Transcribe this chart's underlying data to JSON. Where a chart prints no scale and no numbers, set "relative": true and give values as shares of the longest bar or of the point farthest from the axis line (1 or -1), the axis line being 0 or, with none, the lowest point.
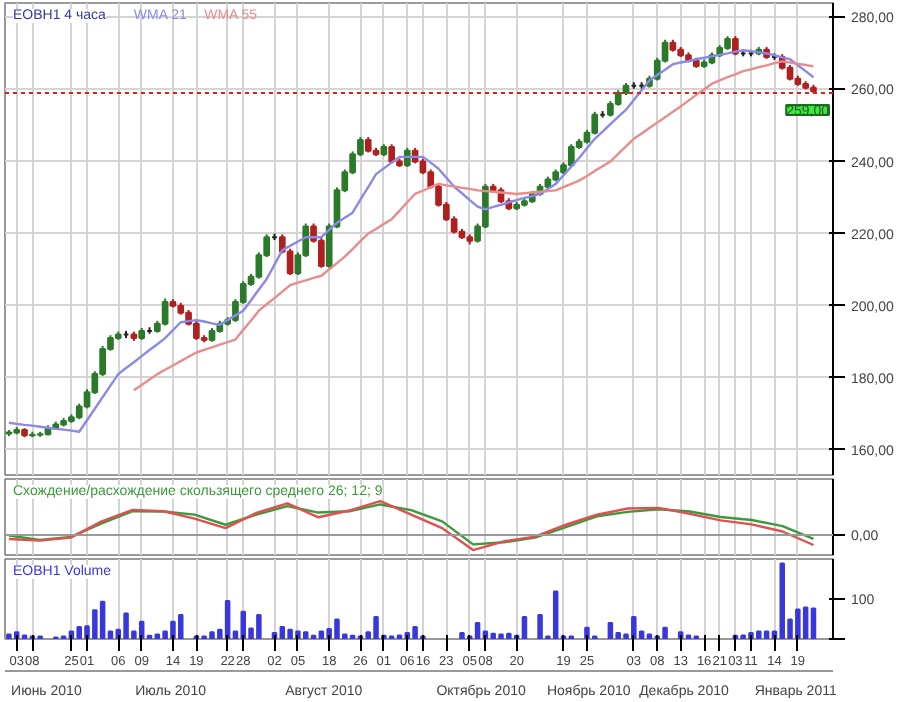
{
  "chart_data": [
    {
      "type": "candlestick",
      "title": "EOBH1 4 часа",
      "categories": [
        null,
        "03",
        null,
        "08",
        null,
        null,
        null,
        null,
        "25",
        null,
        "01",
        null,
        null,
        null,
        "06",
        null,
        null,
        "09",
        null,
        null,
        null,
        "14",
        null,
        null,
        "19",
        null,
        null,
        null,
        "22",
        null,
        "28",
        null,
        null,
        null,
        "02",
        null,
        null,
        "05",
        null,
        null,
        null,
        "18",
        null,
        null,
        null,
        "26",
        null,
        null,
        "01",
        null,
        null,
        "06",
        null,
        "16",
        null,
        null,
        "23",
        null,
        null,
        "05",
        null,
        "08",
        null,
        null,
        null,
        "20",
        null,
        null,
        null,
        null,
        null,
        "19",
        null,
        null,
        "25",
        null,
        null,
        null,
        null,
        null,
        "03",
        null,
        null,
        "08",
        null,
        null,
        "13",
        null,
        null,
        "16",
        null,
        "21",
        null,
        "03",
        null,
        "11",
        null,
        null,
        "14",
        null,
        null,
        "19",
        null,
        null
      ],
      "ohlc": [
        [
          164.5,
          165.5,
          163.8,
          164.8
        ],
        [
          164.8,
          166.3,
          164.3,
          165.5
        ],
        [
          165.5,
          166,
          163.5,
          164
        ],
        [
          164,
          165,
          163.5,
          164.2
        ],
        [
          164.2,
          165,
          163.6,
          164.3
        ],
        [
          164.3,
          166.8,
          164,
          166
        ],
        [
          166,
          167.8,
          165.5,
          167
        ],
        [
          167,
          168.8,
          166.5,
          168
        ],
        [
          168,
          169.8,
          167.5,
          169
        ],
        [
          169,
          172.8,
          168.5,
          172
        ],
        [
          172,
          176.8,
          171.5,
          176
        ],
        [
          176,
          181.8,
          175.5,
          181
        ],
        [
          181,
          188.8,
          180.5,
          188
        ],
        [
          188,
          191.8,
          187.5,
          191
        ],
        [
          191,
          192.8,
          190.5,
          192
        ],
        [
          192,
          193,
          191,
          192
        ],
        [
          192,
          192.8,
          190.2,
          191
        ],
        [
          191,
          193.8,
          190.5,
          193
        ],
        [
          193,
          194,
          192.2,
          193
        ],
        [
          193,
          195.8,
          192.5,
          195
        ],
        [
          195,
          202,
          194.5,
          201
        ],
        [
          201,
          201.8,
          199.5,
          200
        ],
        [
          200,
          200.8,
          197.5,
          198
        ],
        [
          198,
          198.8,
          194.5,
          195
        ],
        [
          195,
          195.8,
          190.5,
          191
        ],
        [
          191,
          191.8,
          189.8,
          190.5
        ],
        [
          190.5,
          193.8,
          190,
          193
        ],
        [
          193,
          195.8,
          192.5,
          195
        ],
        [
          195,
          196.8,
          194.5,
          196
        ],
        [
          196,
          201.8,
          195.5,
          201
        ],
        [
          201,
          206.8,
          200.5,
          206
        ],
        [
          206,
          208.8,
          205.5,
          208
        ],
        [
          208,
          214.8,
          207.5,
          214
        ],
        [
          214,
          219.8,
          213.5,
          219
        ],
        [
          219,
          220,
          218.2,
          219
        ],
        [
          219,
          219.8,
          214.5,
          215
        ],
        [
          215,
          215.8,
          208.5,
          209
        ],
        [
          209,
          214.8,
          208.5,
          214
        ],
        [
          214,
          222.8,
          213.5,
          222
        ],
        [
          222,
          222.8,
          217.5,
          218
        ],
        [
          218,
          218.8,
          210.5,
          211
        ],
        [
          211,
          222.8,
          210.5,
          222
        ],
        [
          222,
          232.8,
          221.5,
          232
        ],
        [
          232,
          237.8,
          231.5,
          237
        ],
        [
          237,
          242.8,
          236.5,
          242
        ],
        [
          242,
          246.8,
          241.5,
          246
        ],
        [
          246,
          246.8,
          242.5,
          243
        ],
        [
          243,
          243.8,
          241.5,
          242
        ],
        [
          242,
          244.8,
          241.5,
          244
        ],
        [
          244,
          244.8,
          239.5,
          240
        ],
        [
          240,
          240.8,
          238.5,
          239
        ],
        [
          239,
          243.8,
          238.5,
          243
        ],
        [
          243,
          243.8,
          239.5,
          240
        ],
        [
          240,
          240.8,
          236.5,
          237
        ],
        [
          237,
          237.8,
          232.5,
          233
        ],
        [
          233,
          233.8,
          227.5,
          228
        ],
        [
          228,
          228.8,
          223.5,
          224
        ],
        [
          224,
          224.8,
          220,
          220.5
        ],
        [
          220.5,
          221.3,
          218.5,
          219
        ],
        [
          219,
          219.8,
          217,
          218
        ],
        [
          218,
          222.8,
          217.5,
          222
        ],
        [
          222,
          233.8,
          221.5,
          233
        ],
        [
          233,
          233.8,
          231.5,
          232
        ],
        [
          232,
          232.8,
          228.5,
          229
        ],
        [
          229,
          229.8,
          226.5,
          227
        ],
        [
          227,
          228.8,
          226.5,
          228
        ],
        [
          228,
          229.8,
          227.5,
          229
        ],
        [
          229,
          231.8,
          228.5,
          231
        ],
        [
          231,
          233.8,
          230.5,
          233
        ],
        [
          233,
          235.8,
          232.5,
          235
        ],
        [
          235,
          237.8,
          234.5,
          237
        ],
        [
          237,
          239.8,
          236.5,
          239
        ],
        [
          239,
          244.8,
          238.5,
          244
        ],
        [
          244,
          246.3,
          243.5,
          245.5
        ],
        [
          245.5,
          248.8,
          245,
          248
        ],
        [
          248,
          253.8,
          247.5,
          253
        ],
        [
          253,
          254,
          252.2,
          253
        ],
        [
          253,
          256.8,
          252.5,
          256
        ],
        [
          256,
          259.8,
          255.5,
          259
        ],
        [
          259,
          261.8,
          258.5,
          261
        ],
        [
          261,
          262,
          260.2,
          261
        ],
        [
          261,
          262,
          260.2,
          261
        ],
        [
          261,
          263.8,
          260.5,
          263
        ],
        [
          263,
          268.8,
          262.5,
          268
        ],
        [
          268,
          273.8,
          267.5,
          273
        ],
        [
          273,
          273.8,
          270.5,
          271
        ],
        [
          271,
          271.8,
          269,
          269.5
        ],
        [
          269.5,
          270.3,
          267.5,
          268
        ],
        [
          268,
          268.8,
          266,
          266.5
        ],
        [
          266.5,
          268.3,
          266,
          267.5
        ],
        [
          267.5,
          270.3,
          267,
          269.5
        ],
        [
          269.5,
          272.3,
          269,
          271.5
        ],
        [
          271.5,
          274.8,
          271,
          274
        ],
        [
          274,
          274.8,
          269.5,
          270
        ],
        [
          270,
          271,
          269.2,
          270
        ],
        [
          270,
          271,
          269.2,
          270
        ],
        [
          270,
          271.8,
          269.5,
          271
        ],
        [
          271,
          271.8,
          268.5,
          269
        ],
        [
          269,
          270,
          268.2,
          269
        ],
        [
          269,
          269.8,
          265.5,
          266
        ],
        [
          266,
          266.8,
          262.5,
          263
        ],
        [
          263,
          263.8,
          261,
          261.5
        ],
        [
          261.5,
          262.3,
          260,
          260.5
        ],
        [
          260.5,
          261.3,
          259,
          259.5
        ]
      ],
      "colors": [
        "#2a7a2a",
        "#2a7a2a",
        "#b02020",
        "#2a7a2a",
        "#2a7a2a",
        "#2a7a2a",
        "#2a7a2a",
        "#2a7a2a",
        "#2a7a2a",
        "#2a7a2a",
        "#2a7a2a",
        "#2a7a2a",
        "#2a7a2a",
        "#2a7a2a",
        "#2a7a2a",
        "#222222",
        "#b02020",
        "#2a7a2a",
        "#222222",
        "#2a7a2a",
        "#2a7a2a",
        "#b02020",
        "#b02020",
        "#b02020",
        "#b02020",
        "#b02020",
        "#2a7a2a",
        "#2a7a2a",
        "#2a7a2a",
        "#2a7a2a",
        "#2a7a2a",
        "#2a7a2a",
        "#2a7a2a",
        "#2a7a2a",
        "#222222",
        "#b02020",
        "#b02020",
        "#2a7a2a",
        "#2a7a2a",
        "#b02020",
        "#b02020",
        "#2a7a2a",
        "#2a7a2a",
        "#2a7a2a",
        "#2a7a2a",
        "#2a7a2a",
        "#b02020",
        "#b02020",
        "#2a7a2a",
        "#b02020",
        "#b02020",
        "#2a7a2a",
        "#b02020",
        "#b02020",
        "#b02020",
        "#b02020",
        "#b02020",
        "#b02020",
        "#b02020",
        "#b02020",
        "#2a7a2a",
        "#2a7a2a",
        "#b02020",
        "#b02020",
        "#b02020",
        "#2a7a2a",
        "#2a7a2a",
        "#2a7a2a",
        "#2a7a2a",
        "#2a7a2a",
        "#2a7a2a",
        "#2a7a2a",
        "#2a7a2a",
        "#2a7a2a",
        "#2a7a2a",
        "#2a7a2a",
        "#222222",
        "#2a7a2a",
        "#2a7a2a",
        "#2a7a2a",
        "#222222",
        "#222222",
        "#2a7a2a",
        "#2a7a2a",
        "#2a7a2a",
        "#b02020",
        "#b02020",
        "#b02020",
        "#b02020",
        "#2a7a2a",
        "#2a7a2a",
        "#2a7a2a",
        "#2a7a2a",
        "#b02020",
        "#222222",
        "#222222",
        "#2a7a2a",
        "#b02020",
        "#222222",
        "#b02020",
        "#b02020",
        "#b02020",
        "#b02020",
        "#b02020"
      ],
      "series": [
        {
          "type": "line",
          "name": "WMA 21",
          "color": "#8a8ae6",
          "values": [
            167.5,
            167.2,
            166.9,
            166.7,
            166.4,
            166.1,
            165.8,
            165.6,
            165.3,
            165,
            168.2,
            171.4,
            174.6,
            177.8,
            181,
            182.7,
            184.3,
            186,
            187.7,
            189.3,
            191,
            193.2,
            195.4,
            195.7,
            196,
            195.6,
            195.1,
            194.7,
            196,
            197.3,
            198.6,
            201.5,
            204.5,
            207.4,
            211.4,
            215.4,
            216.6,
            217.8,
            219,
            219,
            219,
            221,
            223,
            224.4,
            225.8,
            229.4,
            232.9,
            236.5,
            238.1,
            239.7,
            241.3,
            241.3,
            241.3,
            241.3,
            239.7,
            238,
            235.5,
            233,
            231.2,
            229.3,
            227.5,
            226.7,
            227.4,
            228,
            228.7,
            229.3,
            229.9,
            230.4,
            231,
            232.4,
            233.8,
            236.2,
            238.6,
            241,
            243.7,
            246.3,
            248.3,
            250.4,
            252.4,
            254.4,
            257.1,
            259.8,
            262.5,
            264,
            265.5,
            267,
            267.5,
            267.9,
            268.4,
            268.8,
            269.2,
            269.6,
            270,
            270.5,
            270.9,
            270.6,
            270.3,
            270,
            269.5,
            268.9,
            268.4,
            266.7,
            265.1,
            263.4
          ]
        },
        {
          "type": "line",
          "name": "WMA 55",
          "color": "#e88c8c",
          "values": [
            null,
            null,
            null,
            null,
            null,
            null,
            null,
            null,
            null,
            null,
            null,
            null,
            null,
            null,
            null,
            null,
            176.5,
            178,
            179.5,
            181,
            182.2,
            183.4,
            184.6,
            185.8,
            187,
            187.7,
            188.4,
            189.2,
            189.9,
            190.6,
            193.3,
            195.9,
            198.6,
            200.4,
            202.1,
            203.9,
            205.7,
            206.4,
            207,
            207.7,
            208.3,
            210.1,
            211.8,
            213.6,
            215.7,
            217.9,
            220,
            221.3,
            222.7,
            224,
            226.3,
            228.7,
            231,
            231.9,
            232.9,
            233.8,
            233.4,
            233.1,
            232.7,
            232.4,
            232,
            231.8,
            231.6,
            231.4,
            231.2,
            231,
            231.2,
            231.4,
            231.6,
            231.8,
            232,
            232.9,
            233.8,
            234.7,
            236,
            237.4,
            238.7,
            240,
            242.1,
            244.2,
            246.3,
            247.8,
            249.3,
            250.8,
            252.3,
            253.8,
            255.3,
            256.9,
            258.5,
            260,
            261.6,
            262.5,
            263.4,
            264.2,
            265.1,
            265.6,
            266.2,
            266.7,
            267.3,
            267.8,
            267.5,
            267.1,
            266.8,
            266.4
          ]
        }
      ],
      "ylim": [
        153,
        284
      ],
      "yticks": [
        {
          "value": 160,
          "label": "160,00"
        },
        {
          "value": 180,
          "label": "180,00"
        },
        {
          "value": 200,
          "label": "200,00"
        },
        {
          "value": 220,
          "label": "220,00"
        },
        {
          "value": 240,
          "label": "240,00"
        },
        {
          "value": 260,
          "label": "260,00"
        },
        {
          "value": 280,
          "label": "280,00"
        }
      ],
      "ref_lines": [
        {
          "axis": "y",
          "value": 259,
          "label": "259,00",
          "color": "#e02020",
          "line_style": "dotted"
        }
      ],
      "grid": true,
      "tick_labels": "y"
    },
    {
      "type": "line",
      "title": "Схождение/расхождение скользящего среднего 26; 12; 9",
      "relative": true,
      "categories": [
        null,
        null,
        null,
        null,
        null,
        null,
        null,
        null,
        null,
        null,
        null,
        null,
        null,
        null,
        null,
        null,
        null,
        null,
        null,
        null,
        null,
        null,
        null,
        null,
        null,
        null,
        null
      ],
      "series": [
        {
          "color": "#3c9a3c",
          "values": [
            -0.02,
            -0.15,
            -0.06,
            0.34,
            0.7,
            0.69,
            0.6,
            0.3,
            0.6,
            0.85,
            0.66,
            0.7,
            0.9,
            0.73,
            0.4,
            -0.28,
            -0.22,
            -0.08,
            0.23,
            0.55,
            0.68,
            0.76,
            0.69,
            0.53,
            0.44,
            0.26,
            -0.12
          ]
        },
        {
          "color": "#e05050",
          "values": [
            -0.12,
            -0.17,
            -0.08,
            0.4,
            0.74,
            0.7,
            0.48,
            0.2,
            0.65,
            0.93,
            0.52,
            0.72,
            1.0,
            0.6,
            0.2,
            -0.45,
            -0.19,
            -0.05,
            0.3,
            0.6,
            0.78,
            0.8,
            0.62,
            0.43,
            0.31,
            0.1,
            -0.3
          ]
        }
      ],
      "annotations": [
        "0,00"
      ],
      "grid": true,
      "tick_labels": false
    },
    {
      "type": "bar",
      "title": "EOBH1 Volume",
      "color": "#3838dd",
      "categories": [
        null,
        "03",
        null,
        "08",
        null,
        null,
        null,
        null,
        "25",
        null,
        "01",
        null,
        null,
        null,
        "06",
        null,
        null,
        "09",
        null,
        null,
        null,
        "14",
        null,
        null,
        "19",
        null,
        null,
        null,
        "22",
        null,
        "28",
        null,
        null,
        null,
        "02",
        null,
        null,
        "05",
        null,
        null,
        null,
        "18",
        null,
        null,
        null,
        "26",
        null,
        null,
        "01",
        null,
        null,
        "06",
        null,
        "16",
        null,
        null,
        "23",
        null,
        null,
        "05",
        null,
        "08",
        null,
        null,
        null,
        "20",
        null,
        null,
        null,
        null,
        null,
        "19",
        null,
        null,
        "25",
        null,
        null,
        null,
        null,
        null,
        "03",
        null,
        null,
        "08",
        null,
        null,
        "13",
        null,
        null,
        "16",
        null,
        "21",
        null,
        "03",
        null,
        "11",
        null,
        null,
        "14",
        null,
        null,
        "19",
        null,
        null
      ],
      "values": [
        11,
        17,
        9,
        6,
        6,
        null,
        4,
        6,
        19,
        30,
        32,
        72,
        93,
        19,
        23,
        64,
        19,
        43,
        8,
        11,
        19,
        43,
        60,
        null,
        6,
        6,
        17,
        23,
        95,
        19,
        68,
        26,
        60,
        null,
        15,
        30,
        23,
        19,
        17,
        8,
        19,
        25,
        49,
        11,
        8,
        6,
        17,
        55,
        8,
        6,
        9,
        15,
        30,
        6,
        null,
        null,
        null,
        null,
        15,
        6,
        40,
        19,
        13,
        11,
        13,
        8,
        55,
        null,
        60,
        6,
        119,
        6,
        6,
        null,
        28,
        6,
        null,
        40,
        15,
        11,
        55,
        19,
        11,
        6,
        28,
        null,
        17,
        9,
        6,
        null,
        null,
        null,
        null,
        8,
        9,
        15,
        19,
        19,
        19,
        189,
        49,
        74,
        79,
        76
      ],
      "ylim": [
        0,
        200
      ],
      "yticks": [
        {
          "value": 0,
          "label": null
        },
        100
      ],
      "annotations": [
        "Июнь 2010",
        "Июль 2010",
        "Август 2010",
        "Октябрь 2010",
        "Ноябрь 2010",
        "Декабрь 2010",
        "Январь 2011"
      ],
      "grid": "x"
    }
  ]
}
